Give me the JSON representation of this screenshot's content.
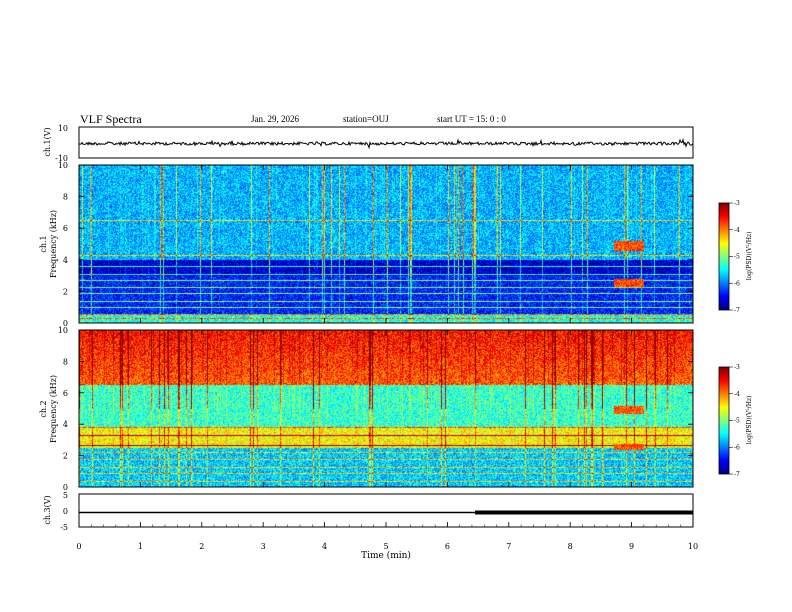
{
  "header": {
    "title": "VLF Spectra",
    "date": "Jan. 29, 2026",
    "station": "station=OUJ",
    "start_ut": "start UT =  15: 0  : 0"
  },
  "chart_data": [
    {
      "type": "line",
      "ylabel": "ch.1(V)",
      "ylim": [
        -10,
        10
      ],
      "yticks": [
        "10",
        "-10"
      ],
      "description_level": -0.7
    },
    {
      "type": "heatmap",
      "ylabel_line1": "ch.1",
      "ylabel_line2": "Frequency (kHz)",
      "ylim": [
        0,
        10
      ],
      "yticks": [
        "0",
        "2",
        "4",
        "6",
        "8",
        "10"
      ],
      "xlim": [
        0,
        10
      ],
      "colorbar": {
        "label": "log(PSD)(V²/Hz)",
        "ticks": [
          "-3",
          "-4",
          "-5",
          "-6",
          "-7"
        ],
        "range": [
          -7,
          -3
        ]
      },
      "base_level": -6.2,
      "band_lines_khz": [
        0.3,
        0.6,
        1.0,
        1.4,
        1.9,
        2.3,
        2.7,
        3.1,
        3.6,
        4.3,
        6.5
      ],
      "bursts": [
        {
          "t_start": 8.7,
          "t_end": 9.2,
          "f_low": 4.6,
          "f_high": 5.2
        },
        {
          "t_start": 8.7,
          "t_end": 9.2,
          "f_low": 2.3,
          "f_high": 2.8
        }
      ]
    },
    {
      "type": "heatmap",
      "ylabel_line1": "ch.2",
      "ylabel_line2": "Frequency (kHz)",
      "ylim": [
        0,
        10
      ],
      "yticks": [
        "0",
        "2",
        "4",
        "6",
        "8",
        "10"
      ],
      "xlim": [
        0,
        10
      ],
      "colorbar": {
        "label": "log(PSD)(V²/Hz)",
        "ticks": [
          "-3",
          "-4",
          "-5",
          "-6",
          "-7"
        ],
        "range": [
          -7,
          -3
        ]
      },
      "base_level": -4.8,
      "band_lines_khz": [
        0.4,
        0.9,
        1.3,
        1.8,
        2.2,
        2.7,
        3.3,
        3.8
      ],
      "bursts": [
        {
          "t_start": 8.7,
          "t_end": 9.2,
          "f_low": 4.7,
          "f_high": 5.2
        },
        {
          "t_start": 8.7,
          "t_end": 9.2,
          "f_low": 2.4,
          "f_high": 2.8
        }
      ]
    },
    {
      "type": "line",
      "ylabel": "ch.3(V)",
      "ylim": [
        -5,
        5
      ],
      "yticks": [
        "5",
        "0",
        "-5"
      ],
      "xlabel": "Time (min)",
      "xlim": [
        0,
        10
      ],
      "xticks": [
        "0",
        "1",
        "2",
        "3",
        "4",
        "5",
        "6",
        "7",
        "8",
        "9",
        "10"
      ],
      "level": -0.6,
      "thick_from_min": 6.45
    }
  ]
}
